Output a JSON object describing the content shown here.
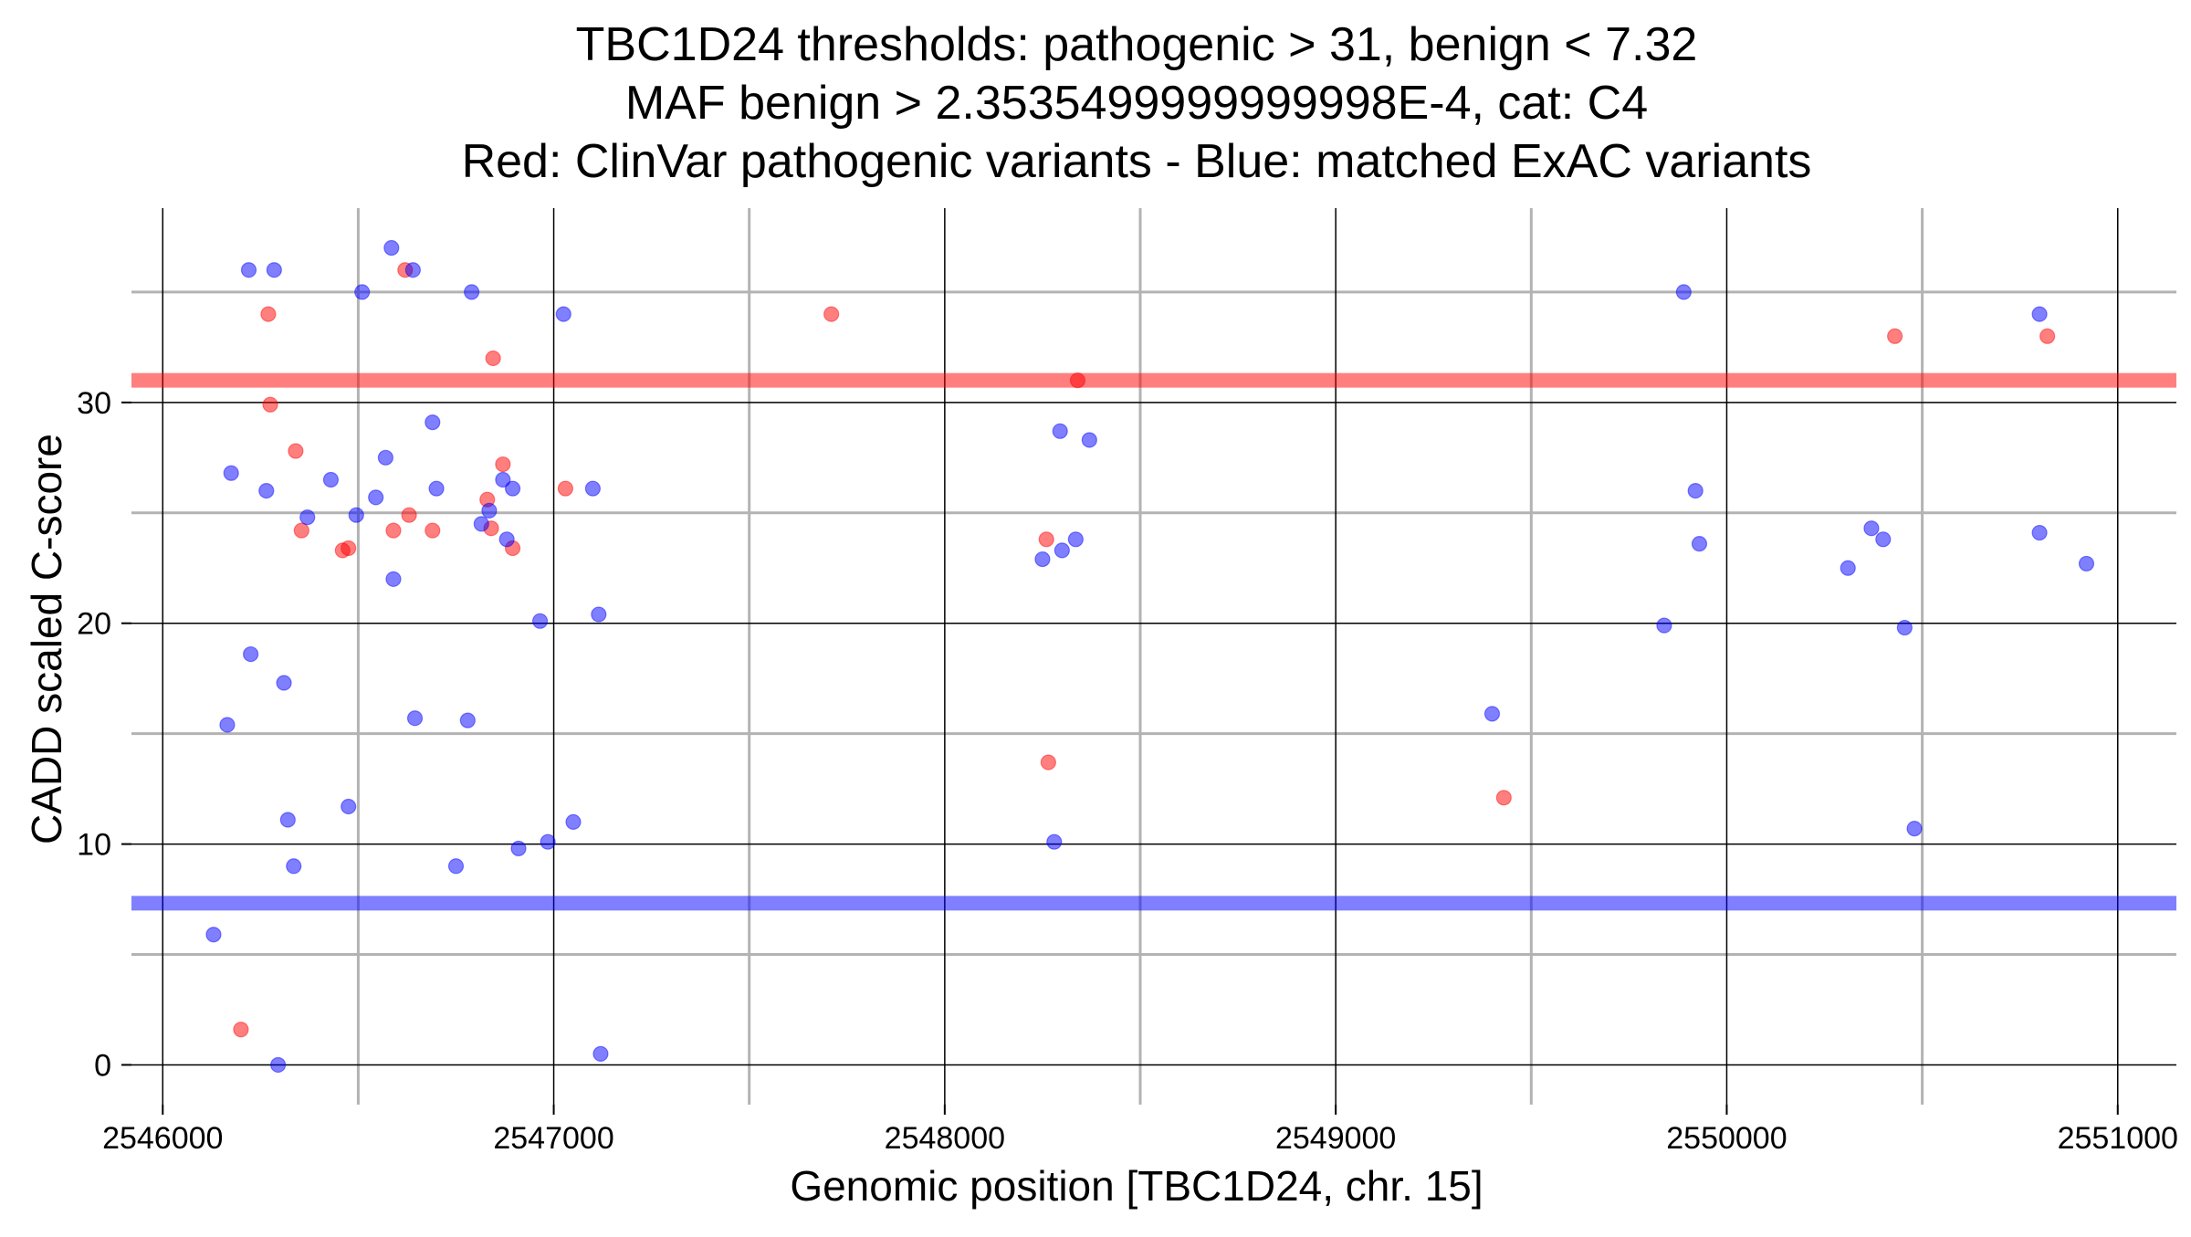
{
  "chart_data": {
    "type": "scatter",
    "title_lines": [
      "TBC1D24 thresholds: pathogenic > 31, benign < 7.32",
      "MAF benign > 2.3535499999999998E-4, cat: C4",
      "Red: ClinVar pathogenic variants - Blue: matched ExAC variants"
    ],
    "xlabel": "Genomic position [TBC1D24, chr. 15]",
    "ylabel": "CADD scaled C-score",
    "xlim": [
      2545920,
      2551150
    ],
    "ylim": [
      -1.8,
      38.8
    ],
    "x_ticks": [
      2546000,
      2547000,
      2548000,
      2549000,
      2550000,
      2551000
    ],
    "x_tick_labels": [
      "2546000",
      "2547000",
      "2548000",
      "2549000",
      "2550000",
      "2551000"
    ],
    "x_minor_grid": [
      2546500,
      2547500,
      2548500,
      2549500,
      2550500
    ],
    "y_ticks": [
      0,
      10,
      20,
      30
    ],
    "y_tick_labels": [
      "0",
      "10",
      "20",
      "30"
    ],
    "y_minor_grid": [
      5,
      15,
      25,
      35
    ],
    "grid": true,
    "thresholds": [
      {
        "name": "pathogenic",
        "value": 31,
        "color": "#ff0000"
      },
      {
        "name": "benign",
        "value": 7.32,
        "color": "#0000ff"
      }
    ],
    "series": [
      {
        "name": "ClinVar pathogenic variants",
        "color": "#ff0000",
        "points": [
          [
            2546200,
            1.6
          ],
          [
            2546270,
            34
          ],
          [
            2546275,
            29.9
          ],
          [
            2546340,
            27.8
          ],
          [
            2546355,
            24.2
          ],
          [
            2546460,
            23.3
          ],
          [
            2546475,
            23.4
          ],
          [
            2546590,
            24.2
          ],
          [
            2546620,
            36
          ],
          [
            2546630,
            24.9
          ],
          [
            2546690,
            24.2
          ],
          [
            2546830,
            25.6
          ],
          [
            2546840,
            24.3
          ],
          [
            2546845,
            32
          ],
          [
            2546870,
            27.2
          ],
          [
            2546895,
            23.4
          ],
          [
            2547030,
            26.1
          ],
          [
            2547710,
            34
          ],
          [
            2548260,
            23.8
          ],
          [
            2548265,
            13.7
          ],
          [
            2548340,
            31
          ],
          [
            2549430,
            12.1
          ],
          [
            2550430,
            33
          ],
          [
            2550820,
            33
          ]
        ]
      },
      {
        "name": "matched ExAC variants",
        "color": "#0000ff",
        "points": [
          [
            2546130,
            5.9
          ],
          [
            2546165,
            15.4
          ],
          [
            2546175,
            26.8
          ],
          [
            2546220,
            36
          ],
          [
            2546225,
            18.6
          ],
          [
            2546265,
            26
          ],
          [
            2546285,
            36
          ],
          [
            2546295,
            0
          ],
          [
            2546310,
            17.3
          ],
          [
            2546320,
            11.1
          ],
          [
            2546335,
            9
          ],
          [
            2546370,
            24.8
          ],
          [
            2546430,
            26.5
          ],
          [
            2546475,
            11.7
          ],
          [
            2546495,
            24.9
          ],
          [
            2546510,
            35
          ],
          [
            2546545,
            25.7
          ],
          [
            2546570,
            27.5
          ],
          [
            2546585,
            37
          ],
          [
            2546590,
            22
          ],
          [
            2546640,
            36
          ],
          [
            2546645,
            15.7
          ],
          [
            2546690,
            29.1
          ],
          [
            2546700,
            26.1
          ],
          [
            2546750,
            9
          ],
          [
            2546780,
            15.6
          ],
          [
            2546790,
            35
          ],
          [
            2546815,
            24.5
          ],
          [
            2546835,
            25.1
          ],
          [
            2546870,
            26.5
          ],
          [
            2546880,
            23.8
          ],
          [
            2546895,
            26.1
          ],
          [
            2546910,
            9.8
          ],
          [
            2546965,
            20.1
          ],
          [
            2546985,
            10.1
          ],
          [
            2547025,
            34
          ],
          [
            2547050,
            11
          ],
          [
            2547100,
            26.1
          ],
          [
            2547115,
            20.4
          ],
          [
            2547120,
            0.5
          ],
          [
            2548250,
            22.9
          ],
          [
            2548280,
            10.1
          ],
          [
            2548295,
            28.7
          ],
          [
            2548300,
            23.3
          ],
          [
            2548335,
            23.8
          ],
          [
            2548370,
            28.3
          ],
          [
            2549400,
            15.9
          ],
          [
            2549840,
            19.9
          ],
          [
            2549890,
            35
          ],
          [
            2549920,
            26
          ],
          [
            2549930,
            23.6
          ],
          [
            2550310,
            22.5
          ],
          [
            2550370,
            24.3
          ],
          [
            2550400,
            23.8
          ],
          [
            2550455,
            19.8
          ],
          [
            2550480,
            10.7
          ],
          [
            2550800,
            24.1
          ],
          [
            2550800,
            34
          ],
          [
            2550920,
            22.7
          ]
        ]
      }
    ]
  }
}
